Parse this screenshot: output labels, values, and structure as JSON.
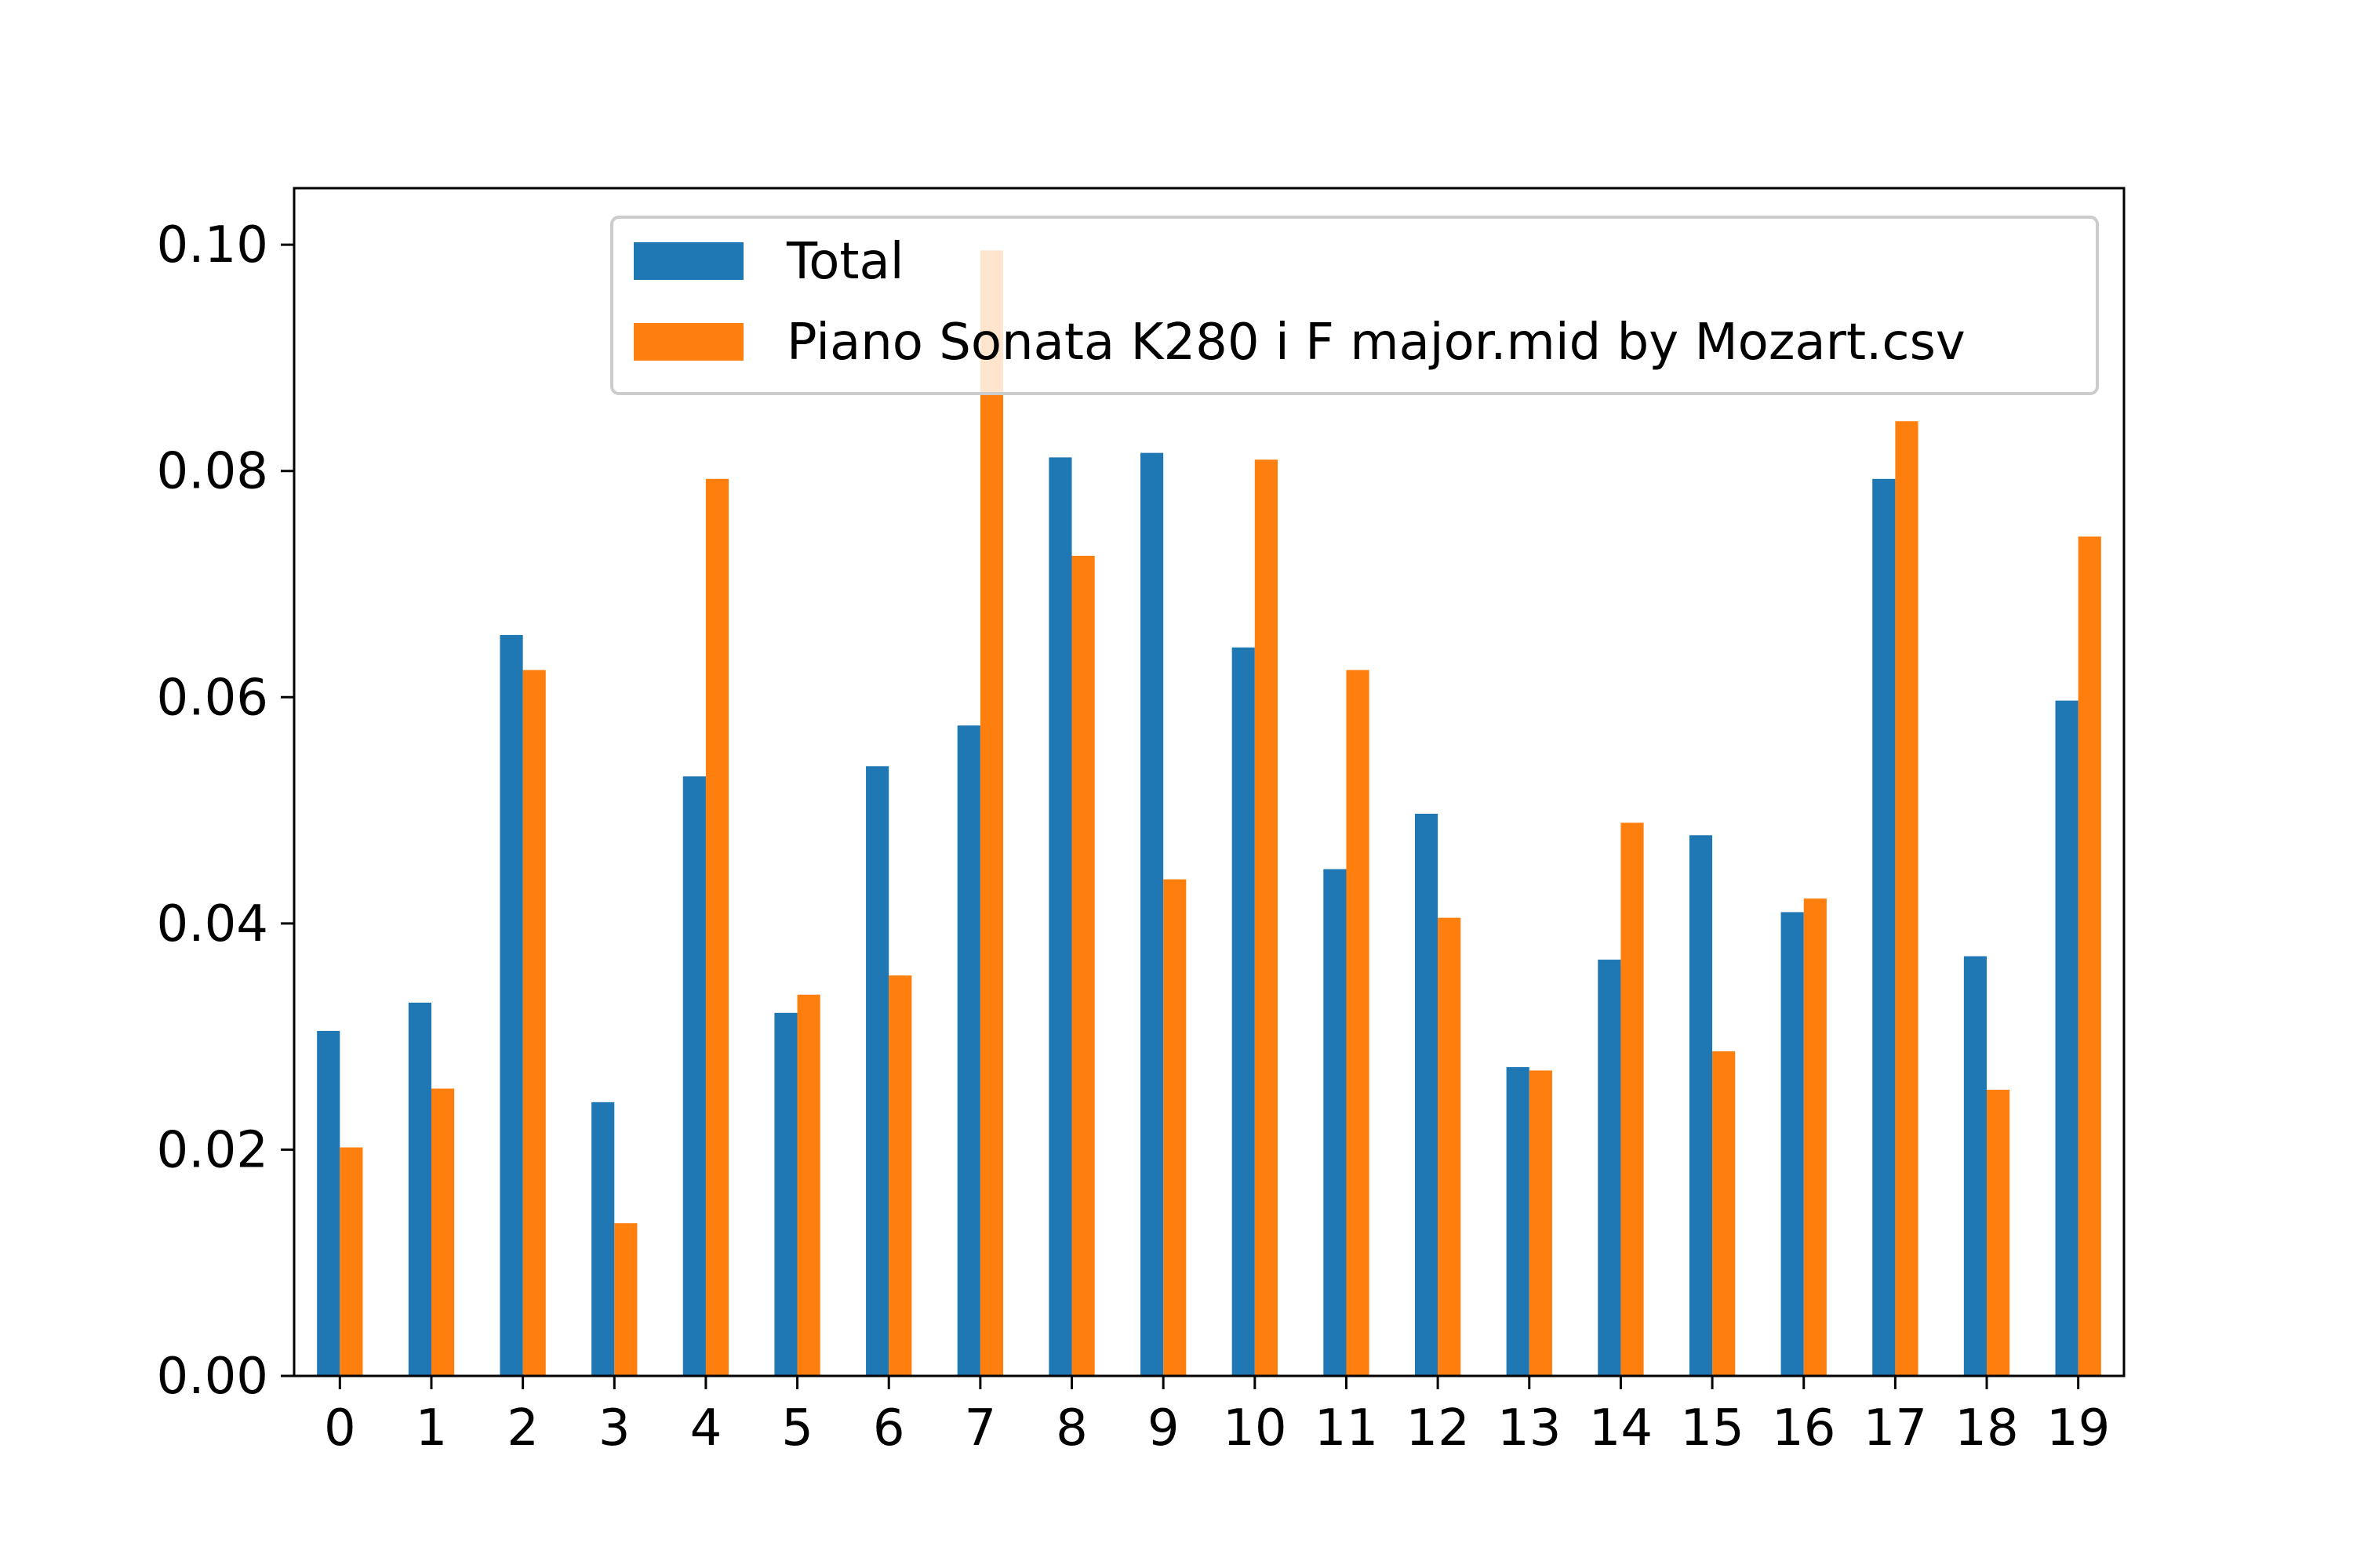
{
  "chart_data": {
    "type": "bar",
    "categories": [
      "0",
      "1",
      "2",
      "3",
      "4",
      "5",
      "6",
      "7",
      "8",
      "9",
      "10",
      "11",
      "12",
      "13",
      "14",
      "15",
      "16",
      "17",
      "18",
      "19"
    ],
    "series": [
      {
        "name": "Total",
        "color": "#1f77b4",
        "values": [
          0.0305,
          0.033,
          0.0655,
          0.0242,
          0.053,
          0.0321,
          0.0539,
          0.0575,
          0.0812,
          0.0816,
          0.0644,
          0.0448,
          0.0497,
          0.0273,
          0.0368,
          0.0478,
          0.041,
          0.0793,
          0.0371,
          0.0597
        ]
      },
      {
        "name": "Piano Sonata K280 i F major.mid by Mozart.csv",
        "color": "#ff7f0e",
        "values": [
          0.0202,
          0.0254,
          0.0624,
          0.0135,
          0.0793,
          0.0337,
          0.0354,
          0.0995,
          0.0725,
          0.0439,
          0.081,
          0.0624,
          0.0405,
          0.027,
          0.0489,
          0.0287,
          0.0422,
          0.0844,
          0.0253,
          0.0742
        ]
      }
    ],
    "ylim": [
      0,
      0.105
    ],
    "yticks": [
      "0.00",
      "0.02",
      "0.04",
      "0.06",
      "0.08",
      "0.10"
    ],
    "legend_position": "upper-right",
    "grid": false
  }
}
